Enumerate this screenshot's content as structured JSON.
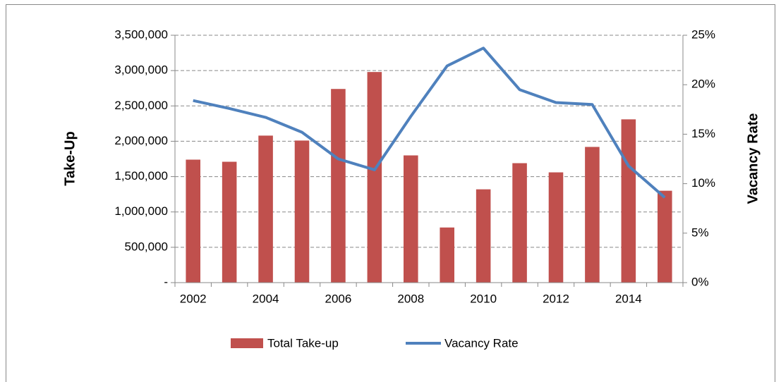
{
  "chart_data": {
    "type": "bar_line",
    "categories": [
      "2002",
      null,
      "2004",
      null,
      "2006",
      null,
      "2008",
      null,
      "2010",
      null,
      "2012",
      null,
      "2014",
      null
    ],
    "series": [
      {
        "name": "Total Take-up",
        "type": "bar",
        "color": "#c0504d",
        "axis": "y",
        "values": [
          1740000,
          1710000,
          2080000,
          2010000,
          2740000,
          2980000,
          1800000,
          780000,
          1320000,
          1690000,
          1560000,
          1920000,
          2310000,
          1300000
        ]
      },
      {
        "name": "Vacancy Rate",
        "type": "line",
        "color": "#4f81bd",
        "axis": "y2",
        "values": [
          18.4,
          17.6,
          16.7,
          15.2,
          12.5,
          11.4,
          16.8,
          21.9,
          23.7,
          19.5,
          18.2,
          18.0,
          11.8,
          8.6
        ]
      }
    ],
    "y_label": "Take-Up",
    "y2_label": "Vacancy Rate",
    "ylim": [
      0,
      3500000
    ],
    "yticks": [
      {
        "value": 0,
        "label": "-"
      },
      {
        "value": 500000,
        "label": "500,000"
      },
      {
        "value": 1000000,
        "label": "1,000,000"
      },
      {
        "value": 1500000,
        "label": "1,500,000"
      },
      {
        "value": 2000000,
        "label": "2,000,000"
      },
      {
        "value": 2500000,
        "label": "2,500,000"
      },
      {
        "value": 3000000,
        "label": "3,000,000"
      },
      {
        "value": 3500000,
        "label": "3,500,000"
      }
    ],
    "y2lim": [
      0,
      25
    ],
    "y2ticks": [
      {
        "value": 0,
        "label": "0%"
      },
      {
        "value": 5,
        "label": "5%"
      },
      {
        "value": 10,
        "label": "10%"
      },
      {
        "value": 15,
        "label": "15%"
      },
      {
        "value": 20,
        "label": "20%"
      },
      {
        "value": 25,
        "label": "25%"
      }
    ],
    "grid": true,
    "legend": "bottom"
  }
}
